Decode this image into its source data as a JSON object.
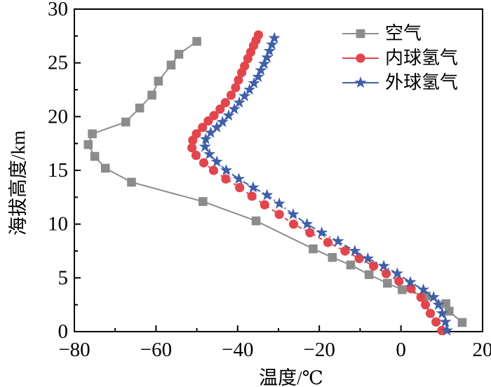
{
  "figure": {
    "background": "#ffffff",
    "axis_color": "#000000",
    "text_color": "#000000"
  },
  "chart_data": {
    "type": "line",
    "title": "",
    "xlabel": "温度/℃",
    "ylabel": "海拔高度/km",
    "xlim": [
      -80,
      20
    ],
    "ylim": [
      0,
      30
    ],
    "x_major_ticks": [
      -80,
      -60,
      -40,
      -20,
      0,
      20
    ],
    "x_minor_ticks": [
      -70,
      -50,
      -30,
      -10,
      10
    ],
    "y_major_ticks": [
      0,
      5,
      10,
      15,
      20,
      25,
      30
    ],
    "y_minor_ticks": [
      2.5,
      7.5,
      12.5,
      17.5,
      22.5,
      27.5
    ],
    "grid": false,
    "legend_position": "top-right-inside",
    "point_format": "[temperature_C, altitude_km]",
    "series": [
      {
        "name": "空气",
        "color": "#8c8c8c",
        "marker": "square",
        "line_style": "solid",
        "points": [
          [
            15.0,
            0.85
          ],
          [
            11.8,
            1.9
          ],
          [
            11.0,
            2.6
          ],
          [
            6.2,
            3.3
          ],
          [
            0.3,
            3.9
          ],
          [
            -3.3,
            4.5
          ],
          [
            -7.8,
            5.3
          ],
          [
            -12.3,
            6.2
          ],
          [
            -16.8,
            6.9
          ],
          [
            -21.5,
            7.7
          ],
          [
            -35.5,
            10.3
          ],
          [
            -48.5,
            12.1
          ],
          [
            -66.0,
            13.9
          ],
          [
            -72.4,
            15.2
          ],
          [
            -75.0,
            16.3
          ],
          [
            -76.6,
            17.4
          ],
          [
            -75.6,
            18.4
          ],
          [
            -67.4,
            19.5
          ],
          [
            -64.0,
            20.8
          ],
          [
            -61.0,
            22.0
          ],
          [
            -59.4,
            23.3
          ],
          [
            -56.3,
            24.8
          ],
          [
            -54.4,
            25.8
          ],
          [
            -50.0,
            27.0
          ]
        ]
      },
      {
        "name": "内球氢气",
        "color": "#e2464d",
        "marker": "circle",
        "line_style": "dashed",
        "points": [
          [
            10.0,
            0.1
          ],
          [
            8.6,
            0.9
          ],
          [
            7.2,
            1.7
          ],
          [
            6.0,
            2.5
          ],
          [
            4.9,
            3.2
          ],
          [
            2.5,
            4.0
          ],
          [
            -0.5,
            4.7
          ],
          [
            -3.6,
            5.4
          ],
          [
            -6.7,
            6.1
          ],
          [
            -10.2,
            6.8
          ],
          [
            -13.7,
            7.5
          ],
          [
            -17.9,
            8.3
          ],
          [
            -22.3,
            9.2
          ],
          [
            -26.3,
            10.0
          ],
          [
            -29.8,
            10.9
          ],
          [
            -33.4,
            11.8
          ],
          [
            -36.5,
            12.6
          ],
          [
            -39.5,
            13.4
          ],
          [
            -42.9,
            14.2
          ],
          [
            -45.9,
            15.0
          ],
          [
            -48.3,
            15.7
          ],
          [
            -50.2,
            16.4
          ],
          [
            -51.2,
            17.1
          ],
          [
            -51.0,
            17.8
          ],
          [
            -50.1,
            18.4
          ],
          [
            -48.6,
            19.0
          ],
          [
            -47.2,
            19.6
          ],
          [
            -45.8,
            20.1
          ],
          [
            -44.3,
            20.7
          ],
          [
            -43.0,
            21.3
          ],
          [
            -41.6,
            22.0
          ],
          [
            -40.5,
            22.7
          ],
          [
            -39.8,
            23.4
          ],
          [
            -39.0,
            24.1
          ],
          [
            -38.3,
            24.7
          ],
          [
            -37.5,
            25.4
          ],
          [
            -36.8,
            26.0
          ],
          [
            -36.1,
            26.6
          ],
          [
            -35.5,
            27.1
          ],
          [
            -34.9,
            27.6
          ]
        ]
      },
      {
        "name": "外球氢气",
        "color": "#3f5fa8",
        "marker": "star",
        "line_style": "dash-dot",
        "points": [
          [
            11.3,
            0.1
          ],
          [
            10.9,
            0.9
          ],
          [
            10.1,
            1.7
          ],
          [
            9.2,
            2.5
          ],
          [
            8.0,
            3.2
          ],
          [
            5.5,
            3.9
          ],
          [
            2.3,
            4.6
          ],
          [
            -0.9,
            5.4
          ],
          [
            -4.2,
            6.1
          ],
          [
            -8.1,
            6.8
          ],
          [
            -11.3,
            7.5
          ],
          [
            -15.4,
            8.4
          ],
          [
            -19.4,
            9.2
          ],
          [
            -23.0,
            10.0
          ],
          [
            -26.4,
            10.9
          ],
          [
            -29.8,
            11.9
          ],
          [
            -32.8,
            12.7
          ],
          [
            -36.2,
            13.4
          ],
          [
            -39.7,
            14.2
          ],
          [
            -42.8,
            15.0
          ],
          [
            -45.1,
            15.8
          ],
          [
            -46.9,
            16.5
          ],
          [
            -48.0,
            17.2
          ],
          [
            -47.8,
            17.9
          ],
          [
            -46.6,
            18.5
          ],
          [
            -45.1,
            19.0
          ],
          [
            -43.7,
            19.5
          ],
          [
            -42.2,
            20.1
          ],
          [
            -40.8,
            20.7
          ],
          [
            -39.6,
            21.3
          ],
          [
            -38.3,
            21.9
          ],
          [
            -37.1,
            22.5
          ],
          [
            -36.0,
            23.1
          ],
          [
            -35.0,
            23.7
          ],
          [
            -34.3,
            24.3
          ],
          [
            -33.5,
            24.9
          ],
          [
            -32.8,
            25.5
          ],
          [
            -32.2,
            26.1
          ],
          [
            -31.6,
            26.7
          ],
          [
            -31.0,
            27.3
          ]
        ]
      }
    ]
  }
}
